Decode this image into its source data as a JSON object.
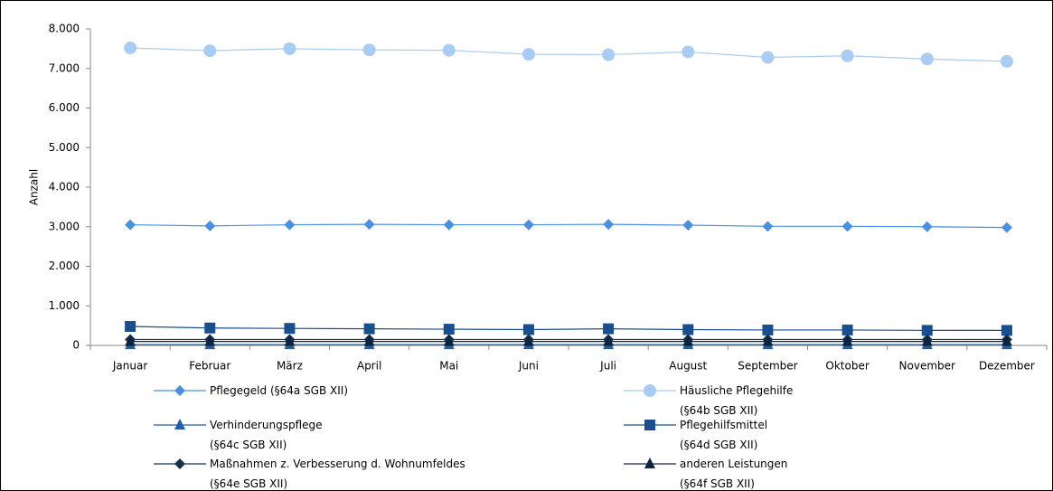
{
  "chart_data": {
    "type": "line",
    "y_label": "Anzahl",
    "categories": [
      "Januar",
      "Februar",
      "März",
      "April",
      "Mai",
      "Juni",
      "Juli",
      "August",
      "September",
      "Oktober",
      "November",
      "Dezember"
    ],
    "ylim": [
      0,
      8000
    ],
    "yticks": [
      {
        "value": 0,
        "label": "0"
      },
      {
        "value": 1000,
        "label": "1.000"
      },
      {
        "value": 2000,
        "label": "2.000"
      },
      {
        "value": 3000,
        "label": "3.000"
      },
      {
        "value": 4000,
        "label": "4.000"
      },
      {
        "value": 5000,
        "label": "5.000"
      },
      {
        "value": 6000,
        "label": "6.000"
      },
      {
        "value": 7000,
        "label": "7.000"
      },
      {
        "value": 8000,
        "label": "8.000"
      }
    ],
    "series": [
      {
        "name": "Pflegegeld (§64a SGB XII)",
        "color": "#4a90e2",
        "marker": "diamond",
        "values": [
          3050,
          3020,
          3050,
          3060,
          3050,
          3050,
          3060,
          3040,
          3010,
          3010,
          3000,
          2980
        ]
      },
      {
        "name": "Häusliche Pflegehilfe\n(§64b SGB XII)",
        "color": "#a8ccf4",
        "marker": "circle",
        "values": [
          7520,
          7450,
          7500,
          7470,
          7460,
          7360,
          7350,
          7420,
          7280,
          7320,
          7240,
          7180
        ]
      },
      {
        "name": "Verhinderungspflege\n(§64c SGB XII)",
        "color": "#1f5fa8",
        "marker": "triangle",
        "values": [
          20,
          20,
          20,
          20,
          20,
          20,
          20,
          20,
          20,
          20,
          20,
          20
        ]
      },
      {
        "name": "Pflegehilfsmittel\n(§64d SGB XII)",
        "color": "#1a4f8f",
        "marker": "square",
        "values": [
          480,
          440,
          430,
          420,
          410,
          400,
          420,
          400,
          390,
          390,
          380,
          380
        ]
      },
      {
        "name": "Maßnahmen z. Verbesserung d. Wohnumfeldes\n(§64e SGB XII)",
        "color": "#14304f",
        "marker": "diamond",
        "values": [
          150,
          150,
          150,
          150,
          150,
          150,
          150,
          150,
          150,
          150,
          150,
          150
        ]
      },
      {
        "name": "anderen Leistungen\n(§64f SGB XII)",
        "color": "#0d2440",
        "marker": "triangle",
        "values": [
          100,
          100,
          100,
          100,
          100,
          100,
          100,
          100,
          100,
          100,
          100,
          100
        ]
      }
    ]
  }
}
